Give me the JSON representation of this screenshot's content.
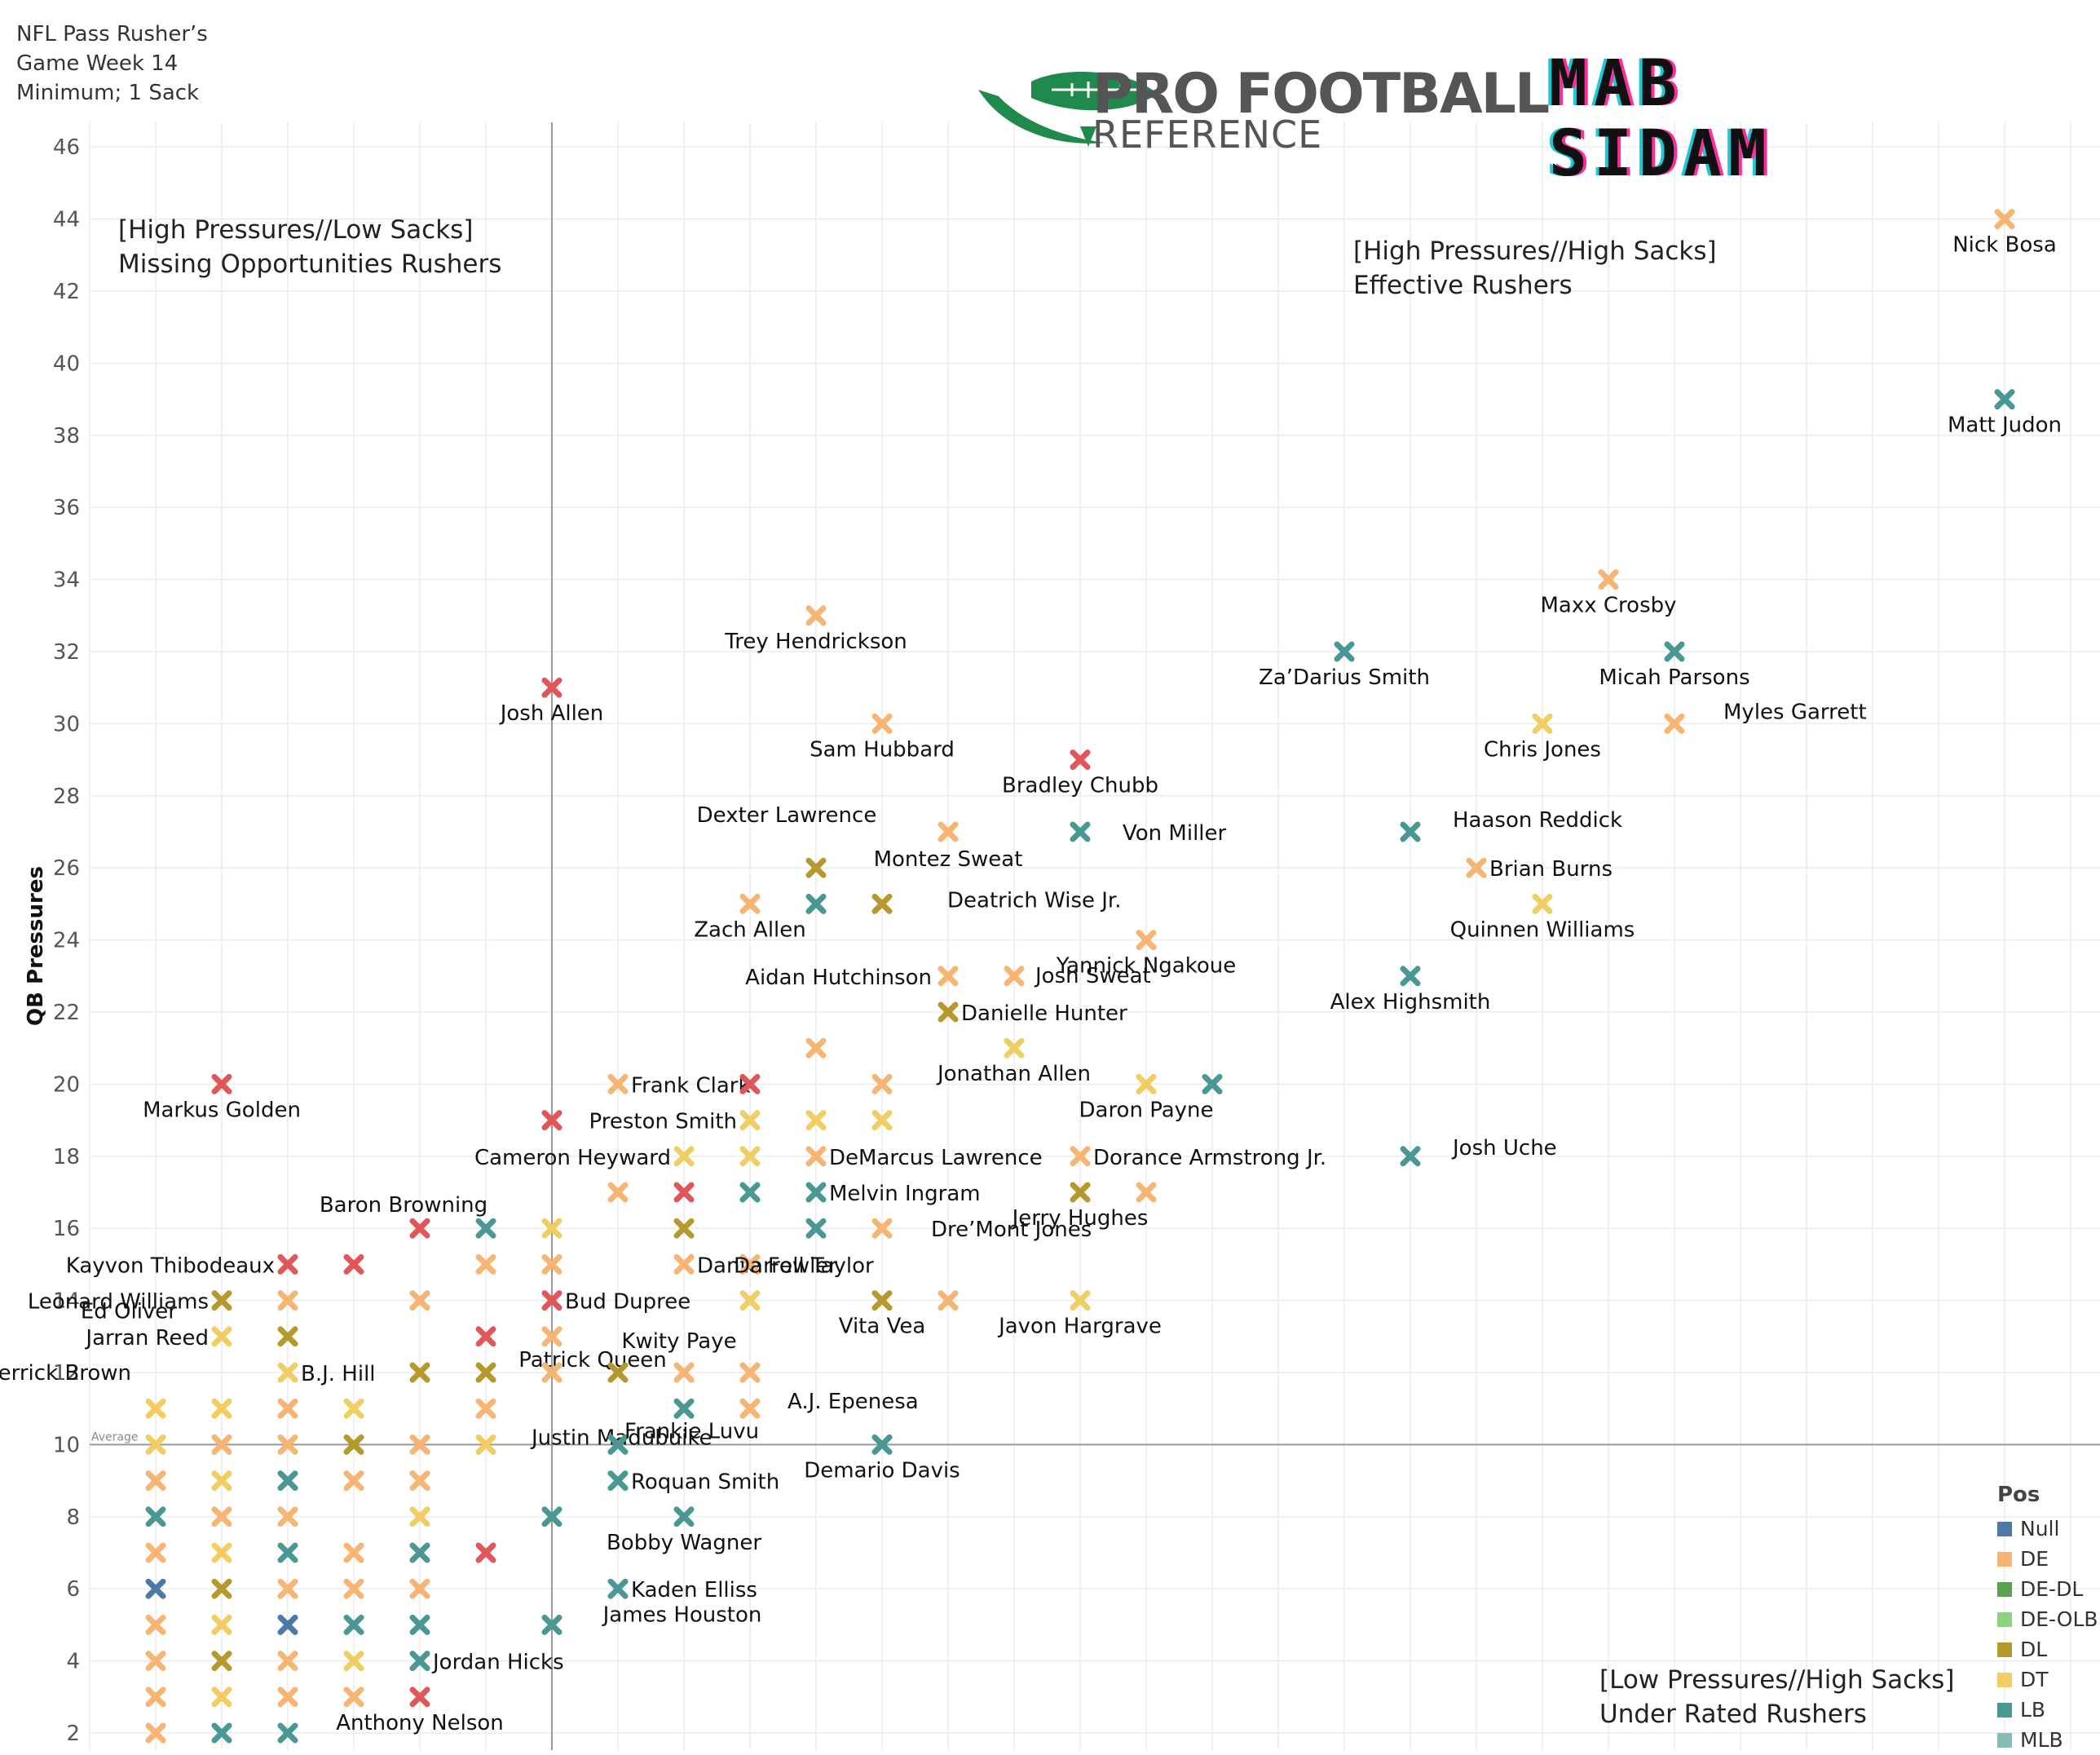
{
  "header": {
    "line1": "NFL Pass Rusher’s",
    "line2": "Game Week 14",
    "line3": "Minimum; 1 Sack"
  },
  "logos": {
    "pfr_line1": "PRO FOOTBALL",
    "pfr_line2": "REFERENCE",
    "mab_line1": "MAB",
    "mab_line2": "SIDAM"
  },
  "colors": {
    "Null": "#4e79a7",
    "DE": "#f7b574",
    "DE-DL": "#59a14f",
    "DE-OLB": "#8cd17d",
    "DL": "#b6992d",
    "DT": "#f1ce63",
    "LB": "#499894",
    "MLB": "#86bcb6",
    "OLB": "#e15759",
    "brand_green": "#1f8a4c"
  },
  "chart_data": {
    "type": "scatter",
    "xlabel": "",
    "ylabel": "QB Pressures",
    "ylim": [
      1.5,
      47
    ],
    "xlim": [
      0,
      15.4
    ],
    "yticks": [
      2,
      4,
      6,
      8,
      10,
      12,
      14,
      16,
      18,
      20,
      22,
      24,
      26,
      28,
      30,
      32,
      34,
      36,
      38,
      40,
      42,
      44,
      46
    ],
    "grid": true,
    "average_line": {
      "y": 10,
      "label": "Average"
    },
    "average_vline": {
      "x": 3.5
    },
    "quadrant_labels": [
      {
        "line1": "[High Pressures//Low Sacks]",
        "line2": "Missing Opportunities Rushers",
        "pos": "top-left"
      },
      {
        "line1": "[High Pressures//High Sacks]",
        "line2": "Effective Rushers",
        "pos": "top-right"
      },
      {
        "line1": "[Low Pressures//High Sacks]",
        "line2": "Under Rated Rushers",
        "pos": "bottom-right"
      }
    ],
    "legend": {
      "title": "Pos",
      "placement": "bottom-right",
      "items": [
        "Null",
        "DE",
        "DE-DL",
        "DE-OLB",
        "DL",
        "DT",
        "LB",
        "MLB"
      ]
    },
    "points": [
      {
        "x": 14.5,
        "y": 44,
        "pos": "DE",
        "label": "Nick Bosa"
      },
      {
        "x": 14.5,
        "y": 39,
        "pos": "LB",
        "label": "Matt Judon"
      },
      {
        "x": 11.5,
        "y": 34,
        "pos": "DE",
        "label": "Maxx Crosby"
      },
      {
        "x": 12,
        "y": 32,
        "pos": "LB",
        "label": "Micah Parsons"
      },
      {
        "x": 9.5,
        "y": 32,
        "pos": "LB",
        "label": "Za’Darius Smith"
      },
      {
        "x": 12,
        "y": 30,
        "pos": "DE",
        "label": "Myles Garrett"
      },
      {
        "x": 11,
        "y": 30,
        "pos": "DT",
        "label": "Chris Jones"
      },
      {
        "x": 5.5,
        "y": 33,
        "pos": "DE",
        "label": "Trey Hendrickson"
      },
      {
        "x": 3.5,
        "y": 31,
        "pos": "OLB",
        "label": "Josh Allen"
      },
      {
        "x": 6,
        "y": 30,
        "pos": "DE",
        "label": "Sam Hubbard"
      },
      {
        "x": 7.5,
        "y": 29,
        "pos": "OLB",
        "label": "Bradley Chubb"
      },
      {
        "x": 10,
        "y": 27,
        "pos": "LB",
        "label": "Haason Reddick"
      },
      {
        "x": 7.5,
        "y": 27,
        "pos": "LB",
        "label": "Von Miller"
      },
      {
        "x": 6.5,
        "y": 27,
        "pos": "DE",
        "label": "Montez Sweat"
      },
      {
        "x": 10.5,
        "y": 26,
        "pos": "DE",
        "label": "Brian Burns"
      },
      {
        "x": 11,
        "y": 25,
        "pos": "DT",
        "label": "Quinnen Williams"
      },
      {
        "x": 5.5,
        "y": 26,
        "pos": "DL",
        "label": "Dexter Lawrence"
      },
      {
        "x": 5,
        "y": 25,
        "pos": "DE",
        "label": "Zach Allen"
      },
      {
        "x": 5.5,
        "y": 25,
        "pos": "LB",
        "label": ""
      },
      {
        "x": 6,
        "y": 25,
        "pos": "DL",
        "label": "Deatrich Wise Jr."
      },
      {
        "x": 8,
        "y": 24,
        "pos": "DE",
        "label": "Yannick Ngakoue"
      },
      {
        "x": 10,
        "y": 23,
        "pos": "LB",
        "label": "Alex Highsmith"
      },
      {
        "x": 6.5,
        "y": 23,
        "pos": "DE",
        "label": "Aidan Hutchinson"
      },
      {
        "x": 7,
        "y": 23,
        "pos": "DE",
        "label": "Josh Sweat"
      },
      {
        "x": 6.5,
        "y": 22,
        "pos": "DL",
        "label": "Danielle Hunter"
      },
      {
        "x": 5.5,
        "y": 21,
        "pos": "DE",
        "label": ""
      },
      {
        "x": 7,
        "y": 21,
        "pos": "DT",
        "label": "Jonathan Allen"
      },
      {
        "x": 1,
        "y": 20,
        "pos": "OLB",
        "label": "Markus Golden"
      },
      {
        "x": 4,
        "y": 20,
        "pos": "DE",
        "label": "Frank Clark"
      },
      {
        "x": 5,
        "y": 20,
        "pos": "OLB",
        "label": ""
      },
      {
        "x": 6,
        "y": 20,
        "pos": "DE",
        "label": ""
      },
      {
        "x": 8,
        "y": 20,
        "pos": "DT",
        "label": "Daron Payne"
      },
      {
        "x": 8.5,
        "y": 20,
        "pos": "LB",
        "label": ""
      },
      {
        "x": 3.5,
        "y": 19,
        "pos": "OLB",
        "label": ""
      },
      {
        "x": 5,
        "y": 19,
        "pos": "DT",
        "label": "Preston Smith"
      },
      {
        "x": 5.5,
        "y": 19,
        "pos": "DT",
        "label": ""
      },
      {
        "x": 6,
        "y": 19,
        "pos": "DT",
        "label": ""
      },
      {
        "x": 4.5,
        "y": 18,
        "pos": "DT",
        "label": "Cameron Heyward"
      },
      {
        "x": 5,
        "y": 18,
        "pos": "DT",
        "label": ""
      },
      {
        "x": 5.5,
        "y": 18,
        "pos": "DE",
        "label": "DeMarcus Lawrence"
      },
      {
        "x": 7.5,
        "y": 18,
        "pos": "DE",
        "label": "Dorance Armstrong Jr."
      },
      {
        "x": 10,
        "y": 18,
        "pos": "LB",
        "label": "Josh Uche"
      },
      {
        "x": 4,
        "y": 17,
        "pos": "DE",
        "label": ""
      },
      {
        "x": 4.5,
        "y": 17,
        "pos": "OLB",
        "label": ""
      },
      {
        "x": 5,
        "y": 17,
        "pos": "LB",
        "label": ""
      },
      {
        "x": 5.5,
        "y": 17,
        "pos": "LB",
        "label": "Melvin Ingram"
      },
      {
        "x": 7.5,
        "y": 17,
        "pos": "DL",
        "label": "Jerry Hughes"
      },
      {
        "x": 8,
        "y": 17,
        "pos": "DE",
        "label": ""
      },
      {
        "x": 2.5,
        "y": 16,
        "pos": "OLB",
        "label": "Baron Browning"
      },
      {
        "x": 3,
        "y": 16,
        "pos": "LB",
        "label": ""
      },
      {
        "x": 3.5,
        "y": 16,
        "pos": "DT",
        "label": ""
      },
      {
        "x": 4.5,
        "y": 16,
        "pos": "DL",
        "label": ""
      },
      {
        "x": 5.5,
        "y": 16,
        "pos": "LB",
        "label": ""
      },
      {
        "x": 6,
        "y": 16,
        "pos": "DE",
        "label": "Dre’Mont Jones"
      },
      {
        "x": 1.5,
        "y": 15,
        "pos": "OLB",
        "label": "Kayvon Thibodeaux"
      },
      {
        "x": 2,
        "y": 15,
        "pos": "OLB",
        "label": ""
      },
      {
        "x": 3,
        "y": 15,
        "pos": "DE",
        "label": ""
      },
      {
        "x": 3.5,
        "y": 15,
        "pos": "DE",
        "label": ""
      },
      {
        "x": 4.5,
        "y": 15,
        "pos": "DE",
        "label": "Dante Fowler"
      },
      {
        "x": 5,
        "y": 15,
        "pos": "DE",
        "label": "Darrell Taylor"
      },
      {
        "x": 1,
        "y": 14,
        "pos": "DL",
        "label": "Leonard Williams"
      },
      {
        "x": 1.5,
        "y": 14,
        "pos": "DE",
        "label": "Ed Oliver"
      },
      {
        "x": 2.5,
        "y": 14,
        "pos": "DE",
        "label": ""
      },
      {
        "x": 3.5,
        "y": 14,
        "pos": "OLB",
        "label": "Bud Dupree"
      },
      {
        "x": 5,
        "y": 14,
        "pos": "DT",
        "label": ""
      },
      {
        "x": 6,
        "y": 14,
        "pos": "DL",
        "label": "Vita Vea"
      },
      {
        "x": 6.5,
        "y": 14,
        "pos": "DE",
        "label": ""
      },
      {
        "x": 7.5,
        "y": 14,
        "pos": "DT",
        "label": "Javon Hargrave"
      },
      {
        "x": 1,
        "y": 13,
        "pos": "DT",
        "label": "Jarran Reed"
      },
      {
        "x": 1.5,
        "y": 13,
        "pos": "DL",
        "label": ""
      },
      {
        "x": 3,
        "y": 13,
        "pos": "OLB",
        "label": ""
      },
      {
        "x": 3.5,
        "y": 13,
        "pos": "DE",
        "label": "Patrick Queen"
      },
      {
        "x": 1.5,
        "y": 12,
        "pos": "DT",
        "label": "B.J. Hill"
      },
      {
        "x": 2.5,
        "y": 12,
        "pos": "DL",
        "label": ""
      },
      {
        "x": 3,
        "y": 12,
        "pos": "DL",
        "label": ""
      },
      {
        "x": 3.5,
        "y": 12,
        "pos": "DE",
        "label": ""
      },
      {
        "x": 4,
        "y": 12,
        "pos": "DL",
        "label": ""
      },
      {
        "x": 4.5,
        "y": 12,
        "pos": "DE",
        "label": "Kwity Paye"
      },
      {
        "x": 5,
        "y": 12,
        "pos": "DE",
        "label": ""
      },
      {
        "x": 0.5,
        "y": 11,
        "pos": "DT",
        "label": "Derrick Brown"
      },
      {
        "x": 1,
        "y": 11,
        "pos": "DT",
        "label": ""
      },
      {
        "x": 1.5,
        "y": 11,
        "pos": "DE",
        "label": ""
      },
      {
        "x": 2,
        "y": 11,
        "pos": "DT",
        "label": ""
      },
      {
        "x": 3,
        "y": 11,
        "pos": "DE",
        "label": ""
      },
      {
        "x": 4.5,
        "y": 11,
        "pos": "LB",
        "label": ""
      },
      {
        "x": 5,
        "y": 11,
        "pos": "DE",
        "label": "A.J. Epenesa"
      },
      {
        "x": 0.5,
        "y": 10,
        "pos": "DT",
        "label": ""
      },
      {
        "x": 1,
        "y": 10,
        "pos": "DE",
        "label": ""
      },
      {
        "x": 1.5,
        "y": 10,
        "pos": "DE",
        "label": ""
      },
      {
        "x": 2,
        "y": 10,
        "pos": "DL",
        "label": ""
      },
      {
        "x": 2.5,
        "y": 10,
        "pos": "DE",
        "label": ""
      },
      {
        "x": 3,
        "y": 10,
        "pos": "DT",
        "label": "Justin Madubuike"
      },
      {
        "x": 4,
        "y": 10,
        "pos": "LB",
        "label": "Frankie Luvu"
      },
      {
        "x": 6,
        "y": 10,
        "pos": "LB",
        "label": "Demario Davis"
      },
      {
        "x": 0.5,
        "y": 9,
        "pos": "DE",
        "label": ""
      },
      {
        "x": 1,
        "y": 9,
        "pos": "DT",
        "label": ""
      },
      {
        "x": 1.5,
        "y": 9,
        "pos": "LB",
        "label": ""
      },
      {
        "x": 2,
        "y": 9,
        "pos": "DE",
        "label": ""
      },
      {
        "x": 2.5,
        "y": 9,
        "pos": "DE",
        "label": ""
      },
      {
        "x": 4,
        "y": 9,
        "pos": "LB",
        "label": "Roquan Smith"
      },
      {
        "x": 0.5,
        "y": 8,
        "pos": "LB",
        "label": ""
      },
      {
        "x": 1,
        "y": 8,
        "pos": "DE",
        "label": ""
      },
      {
        "x": 1.5,
        "y": 8,
        "pos": "DE",
        "label": ""
      },
      {
        "x": 2.5,
        "y": 8,
        "pos": "DT",
        "label": ""
      },
      {
        "x": 3.5,
        "y": 8,
        "pos": "LB",
        "label": ""
      },
      {
        "x": 4.5,
        "y": 8,
        "pos": "LB",
        "label": "Bobby Wagner"
      },
      {
        "x": 0.5,
        "y": 7,
        "pos": "DE",
        "label": ""
      },
      {
        "x": 1,
        "y": 7,
        "pos": "DT",
        "label": ""
      },
      {
        "x": 1.5,
        "y": 7,
        "pos": "LB",
        "label": ""
      },
      {
        "x": 2,
        "y": 7,
        "pos": "DE",
        "label": ""
      },
      {
        "x": 2.5,
        "y": 7,
        "pos": "LB",
        "label": ""
      },
      {
        "x": 3,
        "y": 7,
        "pos": "OLB",
        "label": ""
      },
      {
        "x": 0.5,
        "y": 6,
        "pos": "Null",
        "label": ""
      },
      {
        "x": 1,
        "y": 6,
        "pos": "DL",
        "label": ""
      },
      {
        "x": 1.5,
        "y": 6,
        "pos": "DE",
        "label": ""
      },
      {
        "x": 2,
        "y": 6,
        "pos": "DE",
        "label": ""
      },
      {
        "x": 2.5,
        "y": 6,
        "pos": "DE",
        "label": ""
      },
      {
        "x": 4,
        "y": 6,
        "pos": "LB",
        "label": "Kaden Elliss"
      },
      {
        "x": 0.5,
        "y": 5,
        "pos": "DE",
        "label": ""
      },
      {
        "x": 1,
        "y": 5,
        "pos": "DT",
        "label": ""
      },
      {
        "x": 1.5,
        "y": 5,
        "pos": "Null",
        "label": ""
      },
      {
        "x": 2,
        "y": 5,
        "pos": "LB",
        "label": ""
      },
      {
        "x": 2.5,
        "y": 5,
        "pos": "LB",
        "label": ""
      },
      {
        "x": 3.5,
        "y": 5,
        "pos": "LB",
        "label": "James Houston"
      },
      {
        "x": 0.5,
        "y": 4,
        "pos": "DE",
        "label": ""
      },
      {
        "x": 1,
        "y": 4,
        "pos": "DL",
        "label": ""
      },
      {
        "x": 1.5,
        "y": 4,
        "pos": "DE",
        "label": ""
      },
      {
        "x": 2,
        "y": 4,
        "pos": "DT",
        "label": ""
      },
      {
        "x": 2.5,
        "y": 4,
        "pos": "LB",
        "label": "Jordan Hicks"
      },
      {
        "x": 0.5,
        "y": 3,
        "pos": "DE",
        "label": ""
      },
      {
        "x": 1,
        "y": 3,
        "pos": "DT",
        "label": ""
      },
      {
        "x": 1.5,
        "y": 3,
        "pos": "DE",
        "label": ""
      },
      {
        "x": 2,
        "y": 3,
        "pos": "DE",
        "label": ""
      },
      {
        "x": 2.5,
        "y": 3,
        "pos": "OLB",
        "label": "Anthony Nelson"
      },
      {
        "x": 0.5,
        "y": 2,
        "pos": "DE",
        "label": ""
      },
      {
        "x": 1,
        "y": 2,
        "pos": "LB",
        "label": ""
      },
      {
        "x": 1.5,
        "y": 2,
        "pos": "LB",
        "label": ""
      }
    ]
  }
}
